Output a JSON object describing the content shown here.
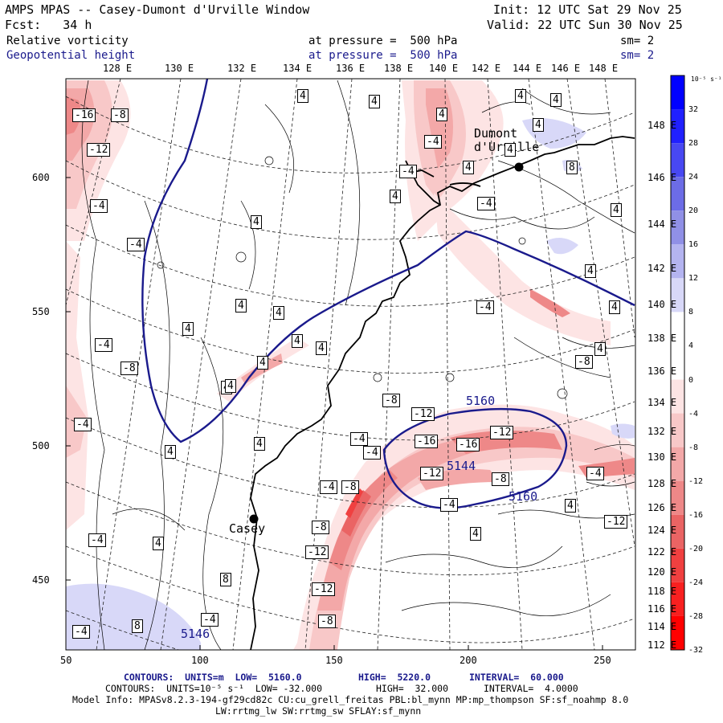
{
  "header": {
    "title": "AMPS MPAS -- Casey-Dumont d'Urville Window",
    "init": "Init: 12 UTC Sat 29 Nov 25",
    "fcst": "Fcst:   34 h",
    "valid": "Valid: 22 UTC Sun 30 Nov 25"
  },
  "fields": [
    {
      "name": "Relative vorticity",
      "level": "at pressure =  500 hPa",
      "sm": "sm= 2",
      "color": "#000000"
    },
    {
      "name": "Geopotential height",
      "level": "at pressure =  500 hPa",
      "sm": "sm= 2",
      "color": "#1a1a8c"
    }
  ],
  "top_longitudes": [
    "128 E",
    "130 E",
    "132 E",
    "134 E",
    "136 E",
    "138 E",
    "140 E",
    "142 E",
    "144 E",
    "146 E",
    "148 E"
  ],
  "right_latitudes": [
    "148 E",
    "146 E",
    "144 E",
    "142 E",
    "140 E",
    "138 E",
    "136 E",
    "134 E",
    "132 E",
    "130 E",
    "128 E",
    "126 E",
    "124 E",
    "122 E",
    "120 E",
    "118 E",
    "116 E",
    "114 E",
    "112 E"
  ],
  "y_ticks": [
    "600",
    "550",
    "500",
    "450"
  ],
  "x_ticks": [
    "50",
    "100",
    "150",
    "200",
    "250"
  ],
  "colorbar": {
    "unit": "10⁻⁵ s⁻¹",
    "labels": [
      "32",
      "28",
      "24",
      "20",
      "16",
      "12",
      "8",
      "4",
      "0",
      "-4",
      "-8",
      "-12",
      "-16",
      "-20",
      "-24",
      "-28",
      "-32"
    ],
    "colors": [
      "#0000ff",
      "#2020ff",
      "#4848f2",
      "#6c6ce6",
      "#9090e6",
      "#b4b4f0",
      "#d8d8f8",
      "#ffffff",
      "#ffffff",
      "#fde4e4",
      "#f8c8c8",
      "#f3a8a8",
      "#ee8888",
      "#ea6464",
      "#f04040",
      "#f82020",
      "#ff0000"
    ]
  },
  "stations": [
    {
      "name": "Dumont\nd'Urville"
    },
    {
      "name": "Casey"
    }
  ],
  "height_labels": [
    "5160",
    "5144",
    "5160",
    "5146"
  ],
  "vort_labels": [
    "-16",
    "-8",
    "-12",
    "-4",
    "-4",
    "-4",
    "-8",
    "-4",
    "-4",
    "-4",
    "-4",
    "-8",
    "-12",
    "-12",
    "-8",
    "-4",
    "-8",
    "-4",
    "-4",
    "-8",
    "-12",
    "-16",
    "-12",
    "-4",
    "-16",
    "-12",
    "-8",
    "-4",
    "-12",
    "-8",
    "-4",
    "-4",
    "8",
    "-4",
    "-4",
    "4",
    "4",
    "4",
    "4",
    "4",
    "4",
    "4",
    "4",
    "4",
    "4",
    "4",
    "4",
    "4",
    "4",
    "4",
    "4",
    "4",
    "4",
    "4",
    "4",
    "8",
    "8",
    "4",
    "4",
    "4",
    "4",
    "4",
    "4",
    "4",
    "8",
    "4"
  ],
  "footer": {
    "line1_contours": "CONTOURS:  UNITS=m  LOW=  5160.0",
    "line1_high": "HIGH=  5220.0",
    "line1_interval": "INTERVAL=  60.000",
    "line2_contours": "CONTOURS:  UNITS=10⁻⁵ s⁻¹  LOW= -32.000",
    "line2_high": "HIGH=  32.000",
    "line2_interval": "INTERVAL=  4.0000",
    "line3": "Model Info: MPASv8.2.3-194-gf29cd82c CU:cu_grell_freitas PBL:bl_mynn MP:mp_thompson SF:sf_noahmp 8.0",
    "line4": "LW:rrtmg_lw SW:rrtmg_sw SFLAY:sf_mynn"
  }
}
